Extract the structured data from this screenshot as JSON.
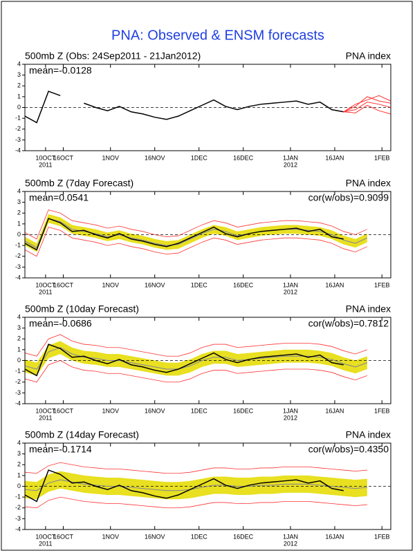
{
  "title": "PNA: Observed & ENSM forecasts",
  "chart_data": [
    {
      "type": "line",
      "title": "500mb Z (Obs: 24Sep2011 - 21Jan2012)",
      "right_title": "PNA index",
      "annotations": [
        "mean=-0.0128"
      ],
      "x": [
        2,
        6,
        10,
        14,
        18,
        22,
        26,
        30,
        34,
        38,
        42,
        46,
        50,
        54,
        58,
        62,
        66,
        70,
        74,
        78,
        82,
        86,
        90,
        94,
        98,
        102,
        106,
        110,
        114,
        118
      ],
      "xlim": [
        2,
        126
      ],
      "ylim": [
        -4,
        4
      ],
      "yticks": [
        -4,
        -3,
        -2,
        -1,
        0,
        1,
        2,
        3,
        4
      ],
      "hline": 0,
      "xticks": [
        {
          "value": 9,
          "label": "10OCT"
        },
        {
          "value": 15,
          "label": "16OCT"
        },
        {
          "value": 31,
          "label": "1NOV"
        },
        {
          "value": 46,
          "label": "16NOV"
        },
        {
          "value": 61,
          "label": "1DEC"
        },
        {
          "value": 76,
          "label": "16DEC"
        },
        {
          "value": 92,
          "label": "1JAN"
        },
        {
          "value": 107,
          "label": "16JAN"
        },
        {
          "value": 123,
          "label": "1FEB"
        }
      ],
      "xtick_years": [
        {
          "value": 9,
          "label": "2011"
        },
        {
          "value": 92,
          "label": "2012"
        }
      ],
      "bands": [],
      "series": [
        {
          "color": "#000000",
          "width": 1.5,
          "values": [
            -0.8,
            -1.4,
            1.5,
            1.1,
            null,
            0.4,
            0.0,
            -0.3,
            0.1,
            -0.4,
            -0.6,
            -0.9,
            -1.1,
            -0.8,
            -0.3,
            0.2,
            0.7,
            0.1,
            -0.2,
            0.1,
            0.3,
            0.4,
            0.5,
            0.6,
            0.3,
            0.5,
            -0.2,
            -0.4,
            null,
            null
          ]
        },
        {
          "color": "#ff3030",
          "width": 1,
          "x": [
            110,
            114,
            118,
            122,
            126
          ],
          "values": [
            -0.4,
            -0.2,
            0.5,
            0.3,
            0.0
          ]
        },
        {
          "color": "#ff3030",
          "width": 1,
          "x": [
            110,
            114,
            118,
            122,
            126
          ],
          "values": [
            -0.4,
            0.1,
            1.0,
            0.6,
            0.4
          ]
        },
        {
          "color": "#ff3030",
          "width": 1,
          "x": [
            110,
            114,
            118,
            122,
            126
          ],
          "values": [
            -0.4,
            -0.5,
            0.2,
            -0.3,
            -0.6
          ]
        },
        {
          "color": "#ff3030",
          "width": 1,
          "x": [
            110,
            114,
            118,
            122,
            126
          ],
          "values": [
            -0.4,
            0.3,
            0.7,
            1.1,
            0.6
          ]
        }
      ]
    },
    {
      "type": "line",
      "title": "500mb Z (7day Forecast)",
      "right_title": "PNA index",
      "annotations": [
        "mean=0.0541",
        "cor(w/obs)=0.9099"
      ],
      "x": [
        2,
        6,
        10,
        14,
        18,
        22,
        26,
        30,
        34,
        38,
        42,
        46,
        50,
        54,
        58,
        62,
        66,
        70,
        74,
        78,
        82,
        86,
        90,
        94,
        98,
        102,
        106,
        110,
        114,
        118
      ],
      "xlim": [
        2,
        126
      ],
      "ylim": [
        -4,
        4
      ],
      "yticks": [
        -4,
        -3,
        -2,
        -1,
        0,
        1,
        2,
        3,
        4
      ],
      "hline": 0,
      "xticks": [
        {
          "value": 9,
          "label": "10OCT"
        },
        {
          "value": 15,
          "label": "16OCT"
        },
        {
          "value": 31,
          "label": "1NOV"
        },
        {
          "value": 46,
          "label": "16NOV"
        },
        {
          "value": 61,
          "label": "1DEC"
        },
        {
          "value": 76,
          "label": "16DEC"
        },
        {
          "value": 92,
          "label": "1JAN"
        },
        {
          "value": 107,
          "label": "16JAN"
        },
        {
          "value": 123,
          "label": "1FEB"
        }
      ],
      "xtick_years": [
        {
          "value": 9,
          "label": "2011"
        },
        {
          "value": 92,
          "label": "2012"
        }
      ],
      "bands": [
        {
          "color": "#e8e020",
          "lower": [
            -1.0,
            -1.6,
            1.1,
            0.8,
            0.1,
            -0.1,
            -0.3,
            -0.6,
            -0.4,
            -0.7,
            -0.9,
            -1.2,
            -1.4,
            -1.3,
            -0.8,
            -0.3,
            0.1,
            -0.1,
            -0.5,
            -0.3,
            -0.1,
            0.0,
            0.1,
            0.1,
            0.0,
            -0.1,
            -0.4,
            -0.9,
            -1.2,
            -0.7
          ],
          "upper": [
            -0.2,
            -0.8,
            1.9,
            1.6,
            0.9,
            0.7,
            0.5,
            0.2,
            0.4,
            0.1,
            -0.1,
            -0.4,
            -0.6,
            -0.5,
            0.0,
            0.5,
            0.9,
            0.7,
            0.3,
            0.5,
            0.7,
            0.8,
            0.9,
            0.9,
            0.8,
            0.7,
            0.4,
            -0.1,
            -0.4,
            0.1
          ]
        }
      ],
      "series": [
        {
          "color": "#ff3030",
          "width": 0.8,
          "values": [
            -1.4,
            -2.0,
            0.7,
            0.4,
            -0.3,
            -0.5,
            -0.7,
            -1.0,
            -0.8,
            -1.1,
            -1.3,
            -1.6,
            -1.8,
            -1.7,
            -1.2,
            -0.7,
            -0.3,
            -0.5,
            -0.9,
            -0.7,
            -0.5,
            -0.4,
            -0.3,
            -0.3,
            -0.4,
            -0.5,
            -0.8,
            -1.3,
            -1.6,
            -1.1
          ]
        },
        {
          "color": "#ff3030",
          "width": 0.8,
          "values": [
            0.2,
            -0.4,
            2.3,
            2.0,
            1.3,
            1.1,
            0.9,
            0.6,
            0.8,
            0.5,
            0.3,
            0.0,
            -0.2,
            -0.1,
            0.4,
            0.9,
            1.3,
            1.1,
            0.7,
            0.9,
            1.1,
            1.2,
            1.3,
            1.3,
            1.2,
            1.1,
            0.8,
            0.3,
            0.0,
            0.5
          ]
        },
        {
          "color": "#7f7f9f",
          "width": 1,
          "values": [
            -0.6,
            -1.2,
            1.5,
            1.2,
            0.5,
            0.3,
            0.1,
            -0.2,
            0.0,
            -0.3,
            -0.5,
            -0.8,
            -1.0,
            -0.9,
            -0.4,
            0.1,
            0.5,
            0.3,
            -0.1,
            0.1,
            0.3,
            0.4,
            0.5,
            0.5,
            0.4,
            0.3,
            0.0,
            -0.5,
            -0.8,
            -0.3
          ]
        },
        {
          "color": "#000000",
          "width": 1.5,
          "values": [
            -0.8,
            -1.4,
            1.5,
            1.1,
            0.3,
            0.4,
            0.0,
            -0.3,
            0.1,
            -0.4,
            -0.6,
            -0.9,
            -1.1,
            -0.8,
            -0.3,
            0.2,
            0.7,
            0.1,
            -0.2,
            0.1,
            0.3,
            0.4,
            0.5,
            0.6,
            0.3,
            0.5,
            -0.2,
            -0.4,
            null,
            null
          ]
        }
      ]
    },
    {
      "type": "line",
      "title": "500mb Z (10day Forecast)",
      "right_title": "PNA index",
      "annotations": [
        "mean=-0.0686",
        "cor(w/obs)=0.7812"
      ],
      "x": [
        2,
        6,
        10,
        14,
        18,
        22,
        26,
        30,
        34,
        38,
        42,
        46,
        50,
        54,
        58,
        62,
        66,
        70,
        74,
        78,
        82,
        86,
        90,
        94,
        98,
        102,
        106,
        110,
        114,
        118
      ],
      "xlim": [
        2,
        126
      ],
      "ylim": [
        -4,
        4
      ],
      "yticks": [
        -4,
        -3,
        -2,
        -1,
        0,
        1,
        2,
        3,
        4
      ],
      "hline": 0,
      "xticks": [
        {
          "value": 9,
          "label": "10OCT"
        },
        {
          "value": 15,
          "label": "16OCT"
        },
        {
          "value": 31,
          "label": "1NOV"
        },
        {
          "value": 46,
          "label": "16NOV"
        },
        {
          "value": 61,
          "label": "1DEC"
        },
        {
          "value": 76,
          "label": "16DEC"
        },
        {
          "value": 92,
          "label": "1JAN"
        },
        {
          "value": 107,
          "label": "16JAN"
        },
        {
          "value": 123,
          "label": "1FEB"
        }
      ],
      "xtick_years": [
        {
          "value": 9,
          "label": "2011"
        },
        {
          "value": 92,
          "label": "2012"
        }
      ],
      "bands": [
        {
          "color": "#e8e020",
          "lower": [
            -1.1,
            -1.4,
            0.2,
            0.6,
            0.0,
            -0.3,
            -0.4,
            -0.6,
            -0.6,
            -0.8,
            -1.0,
            -1.2,
            -1.4,
            -1.4,
            -1.1,
            -0.6,
            -0.3,
            -0.3,
            -0.6,
            -0.5,
            -0.4,
            -0.3,
            -0.2,
            -0.2,
            -0.2,
            -0.3,
            -0.5,
            -0.9,
            -1.2,
            -0.8
          ],
          "upper": [
            0.1,
            -0.2,
            1.4,
            1.8,
            1.2,
            0.9,
            0.8,
            0.6,
            0.6,
            0.4,
            0.2,
            0.0,
            -0.2,
            -0.2,
            0.1,
            0.6,
            0.9,
            0.9,
            0.6,
            0.7,
            0.8,
            0.9,
            1.0,
            1.0,
            1.0,
            0.9,
            0.7,
            0.3,
            0.0,
            0.4
          ]
        }
      ],
      "series": [
        {
          "color": "#ff3030",
          "width": 0.8,
          "values": [
            -1.7,
            -2.0,
            -0.4,
            0.0,
            -0.6,
            -0.9,
            -1.0,
            -1.2,
            -1.2,
            -1.4,
            -1.6,
            -1.8,
            -2.0,
            -2.0,
            -1.7,
            -1.2,
            -0.9,
            -0.9,
            -1.2,
            -1.1,
            -1.0,
            -0.9,
            -0.8,
            -0.8,
            -0.8,
            -0.9,
            -1.1,
            -1.5,
            -1.8,
            -1.4
          ]
        },
        {
          "color": "#ff3030",
          "width": 0.8,
          "values": [
            0.7,
            0.4,
            2.0,
            2.4,
            1.8,
            1.5,
            1.4,
            1.2,
            1.2,
            1.0,
            0.8,
            0.6,
            0.4,
            0.4,
            0.7,
            1.2,
            1.5,
            1.5,
            1.2,
            1.3,
            1.4,
            1.5,
            1.6,
            1.6,
            1.6,
            1.5,
            1.3,
            0.9,
            0.6,
            1.0
          ]
        },
        {
          "color": "#7f7f9f",
          "width": 1,
          "values": [
            -0.5,
            -0.8,
            0.8,
            1.2,
            0.6,
            0.3,
            0.2,
            0.0,
            0.0,
            -0.2,
            -0.4,
            -0.6,
            -0.8,
            -0.8,
            -0.5,
            0.0,
            0.3,
            0.3,
            0.0,
            0.1,
            0.2,
            0.3,
            0.4,
            0.4,
            0.4,
            0.3,
            0.1,
            -0.3,
            -0.6,
            -0.2
          ]
        },
        {
          "color": "#000000",
          "width": 1.5,
          "values": [
            -0.8,
            -1.4,
            1.5,
            1.1,
            0.3,
            0.4,
            0.0,
            -0.3,
            0.1,
            -0.4,
            -0.6,
            -0.9,
            -1.1,
            -0.8,
            -0.3,
            0.2,
            0.7,
            0.1,
            -0.2,
            0.1,
            0.3,
            0.4,
            0.5,
            0.6,
            0.3,
            0.5,
            -0.2,
            -0.4,
            null,
            null
          ]
        }
      ]
    },
    {
      "type": "line",
      "title": "500mb Z (14day Forecast)",
      "right_title": "PNA index",
      "annotations": [
        "mean=-0.1714",
        "cor(w/obs)=0.4350"
      ],
      "x": [
        2,
        6,
        10,
        14,
        18,
        22,
        26,
        30,
        34,
        38,
        42,
        46,
        50,
        54,
        58,
        62,
        66,
        70,
        74,
        78,
        82,
        86,
        90,
        94,
        98,
        102,
        106,
        110,
        114,
        118
      ],
      "xlim": [
        2,
        126
      ],
      "ylim": [
        -4,
        4
      ],
      "yticks": [
        -4,
        -3,
        -2,
        -1,
        0,
        1,
        2,
        3,
        4
      ],
      "hline": 0,
      "xticks": [
        {
          "value": 9,
          "label": "10OCT"
        },
        {
          "value": 15,
          "label": "16OCT"
        },
        {
          "value": 31,
          "label": "1NOV"
        },
        {
          "value": 46,
          "label": "16NOV"
        },
        {
          "value": 61,
          "label": "1DEC"
        },
        {
          "value": 76,
          "label": "16DEC"
        },
        {
          "value": 92,
          "label": "1JAN"
        },
        {
          "value": 107,
          "label": "16JAN"
        },
        {
          "value": 123,
          "label": "1FEB"
        }
      ],
      "xtick_years": [
        {
          "value": 9,
          "label": "2011"
        },
        {
          "value": 92,
          "label": "2012"
        }
      ],
      "bands": [
        {
          "color": "#e8e020",
          "lower": [
            -1.1,
            -1.2,
            -0.5,
            -0.2,
            -0.4,
            -0.6,
            -0.7,
            -0.8,
            -0.8,
            -0.9,
            -1.0,
            -1.1,
            -1.2,
            -1.2,
            -1.1,
            -0.9,
            -0.7,
            -0.7,
            -0.8,
            -0.8,
            -0.7,
            -0.7,
            -0.6,
            -0.6,
            -0.6,
            -0.7,
            -0.8,
            -0.9,
            -1.0,
            -0.9
          ],
          "upper": [
            0.5,
            0.4,
            1.1,
            1.4,
            1.2,
            1.0,
            0.9,
            0.8,
            0.8,
            0.7,
            0.6,
            0.5,
            0.4,
            0.4,
            0.5,
            0.7,
            0.9,
            0.9,
            0.8,
            0.8,
            0.9,
            0.9,
            1.0,
            1.0,
            1.0,
            0.9,
            0.8,
            0.7,
            0.6,
            0.7
          ]
        }
      ],
      "series": [
        {
          "color": "#ff3030",
          "width": 0.8,
          "values": [
            -1.9,
            -2.0,
            -1.3,
            -1.0,
            -1.2,
            -1.4,
            -1.5,
            -1.6,
            -1.6,
            -1.7,
            -1.8,
            -1.9,
            -2.0,
            -2.0,
            -1.9,
            -1.7,
            -1.5,
            -1.5,
            -1.6,
            -1.6,
            -1.5,
            -1.5,
            -1.4,
            -1.4,
            -1.4,
            -1.5,
            -1.6,
            -1.7,
            -1.8,
            -1.7
          ]
        },
        {
          "color": "#ff3030",
          "width": 0.8,
          "values": [
            1.3,
            1.2,
            1.9,
            2.2,
            2.0,
            1.8,
            1.7,
            1.6,
            1.6,
            1.5,
            1.4,
            1.3,
            1.2,
            1.2,
            1.3,
            1.5,
            1.7,
            1.7,
            1.6,
            1.6,
            1.7,
            1.7,
            1.8,
            1.8,
            1.8,
            1.7,
            1.6,
            1.5,
            1.4,
            1.5
          ]
        },
        {
          "color": "#7f7f9f",
          "width": 1,
          "values": [
            -0.3,
            -0.4,
            0.3,
            0.6,
            0.4,
            0.2,
            0.1,
            0.0,
            0.0,
            -0.1,
            -0.2,
            -0.3,
            -0.4,
            -0.4,
            -0.3,
            -0.1,
            0.1,
            0.1,
            0.0,
            0.0,
            0.1,
            0.1,
            0.2,
            0.2,
            0.2,
            0.1,
            0.0,
            -0.1,
            -0.2,
            -0.1
          ]
        },
        {
          "color": "#000000",
          "width": 1.5,
          "values": [
            -0.8,
            -1.4,
            1.5,
            1.1,
            0.3,
            0.4,
            0.0,
            -0.3,
            0.1,
            -0.4,
            -0.6,
            -0.9,
            -1.1,
            -0.8,
            -0.3,
            0.2,
            0.7,
            0.1,
            -0.2,
            0.1,
            0.3,
            0.4,
            0.5,
            0.6,
            0.3,
            0.5,
            -0.2,
            -0.4,
            null,
            null
          ]
        }
      ]
    }
  ]
}
